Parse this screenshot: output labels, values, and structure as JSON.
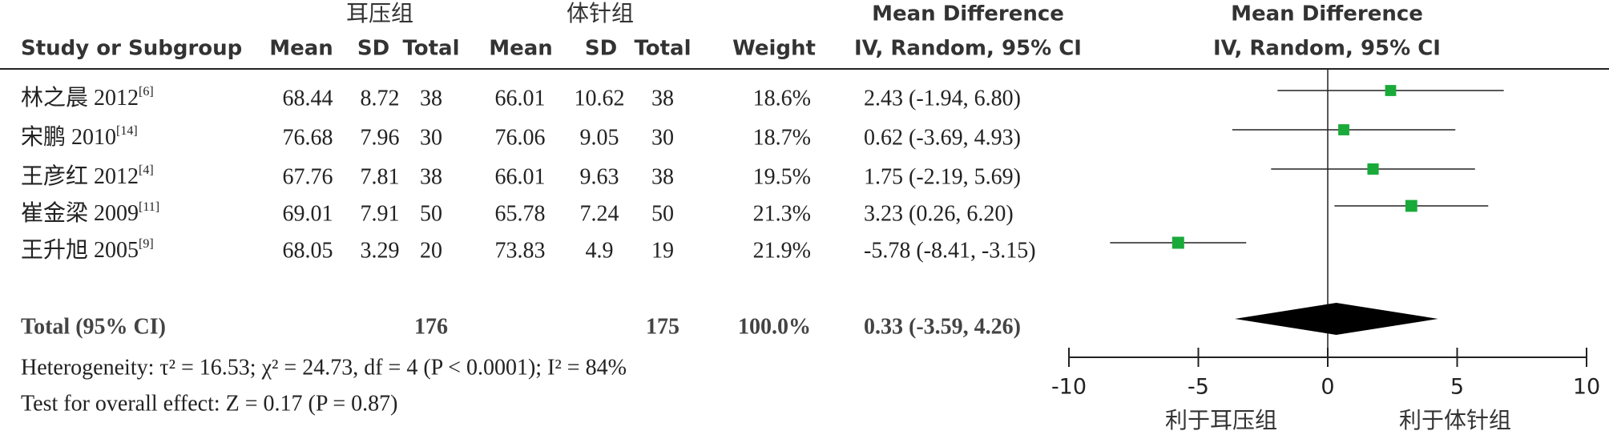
{
  "chart_data": {
    "type": "forest",
    "group_headers": [
      "耳压组",
      "体针组"
    ],
    "columns": [
      "Study or Subgroup",
      "Mean",
      "SD",
      "Total",
      "Mean",
      "SD",
      "Total",
      "Weight"
    ],
    "effect_header": [
      "Mean Difference",
      "IV, Random, 95% CI"
    ],
    "plot_header": [
      "Mean Difference",
      "IV, Random, 95% CI"
    ],
    "studies": [
      {
        "name": "林之晨 2012",
        "ref": "[6]",
        "mean1": 68.44,
        "sd1": 8.72,
        "n1": 38,
        "mean2": 66.01,
        "sd2": 10.62,
        "n2": 38,
        "weight": 18.6,
        "weight_label": "18.6%",
        "md": 2.43,
        "lower": -1.94,
        "upper": 6.8,
        "ci_label": "2.43 (-1.94, 6.80)"
      },
      {
        "name": "宋鹏 2010",
        "ref": "[14]",
        "mean1": 76.68,
        "sd1": 7.96,
        "n1": 30,
        "mean2": 76.06,
        "sd2": 9.05,
        "n2": 30,
        "weight": 18.7,
        "weight_label": "18.7%",
        "md": 0.62,
        "lower": -3.69,
        "upper": 4.93,
        "ci_label": "0.62 (-3.69, 4.93)"
      },
      {
        "name": "王彦红 2012",
        "ref": "[4]",
        "mean1": 67.76,
        "sd1": 7.81,
        "n1": 38,
        "mean2": 66.01,
        "sd2": 9.63,
        "n2": 38,
        "weight": 19.5,
        "weight_label": "19.5%",
        "md": 1.75,
        "lower": -2.19,
        "upper": 5.69,
        "ci_label": "1.75 (-2.19,  5.69)"
      },
      {
        "name": "崔金梁 2009",
        "ref": "[11]",
        "mean1": 69.01,
        "sd1": 7.91,
        "n1": 50,
        "mean2": 65.78,
        "sd2": 7.24,
        "n2": 50,
        "weight": 21.3,
        "weight_label": "21.3%",
        "md": 3.23,
        "lower": 0.26,
        "upper": 6.2,
        "ci_label": "3.23 (0.26, 6.20)"
      },
      {
        "name": "王升旭 2005",
        "ref": "[9]",
        "mean1": 68.05,
        "sd1": 3.29,
        "n1": 20,
        "mean2": 73.83,
        "sd2": 4.9,
        "n2": 19,
        "weight": 21.9,
        "weight_label": "21.9%",
        "md": -5.78,
        "lower": -8.41,
        "upper": -3.15,
        "ci_label": "-5.78 (-8.41, -3.15)"
      }
    ],
    "total": {
      "name": "Total (95% CI)",
      "n1": 176,
      "n2": 175,
      "weight": 100,
      "weight_label": "100.0%",
      "md": 0.33,
      "lower": -3.59,
      "upper": 4.26,
      "ci_label": "0.33 (-3.59, 4.26)"
    },
    "heterogeneity": "Heterogeneity: τ² = 16.53; χ² = 24.73, df = 4 (P < 0.0001); I² = 84%",
    "overall_effect": "Test for overall effect: Z = 0.17 (P = 0.87)",
    "xlim": [
      -10,
      10
    ],
    "xticks": [
      -10,
      -5,
      0,
      5,
      10
    ],
    "x_labels": [
      "利于耳压组",
      "利于体针组"
    ],
    "color": "#1aaa3a"
  }
}
